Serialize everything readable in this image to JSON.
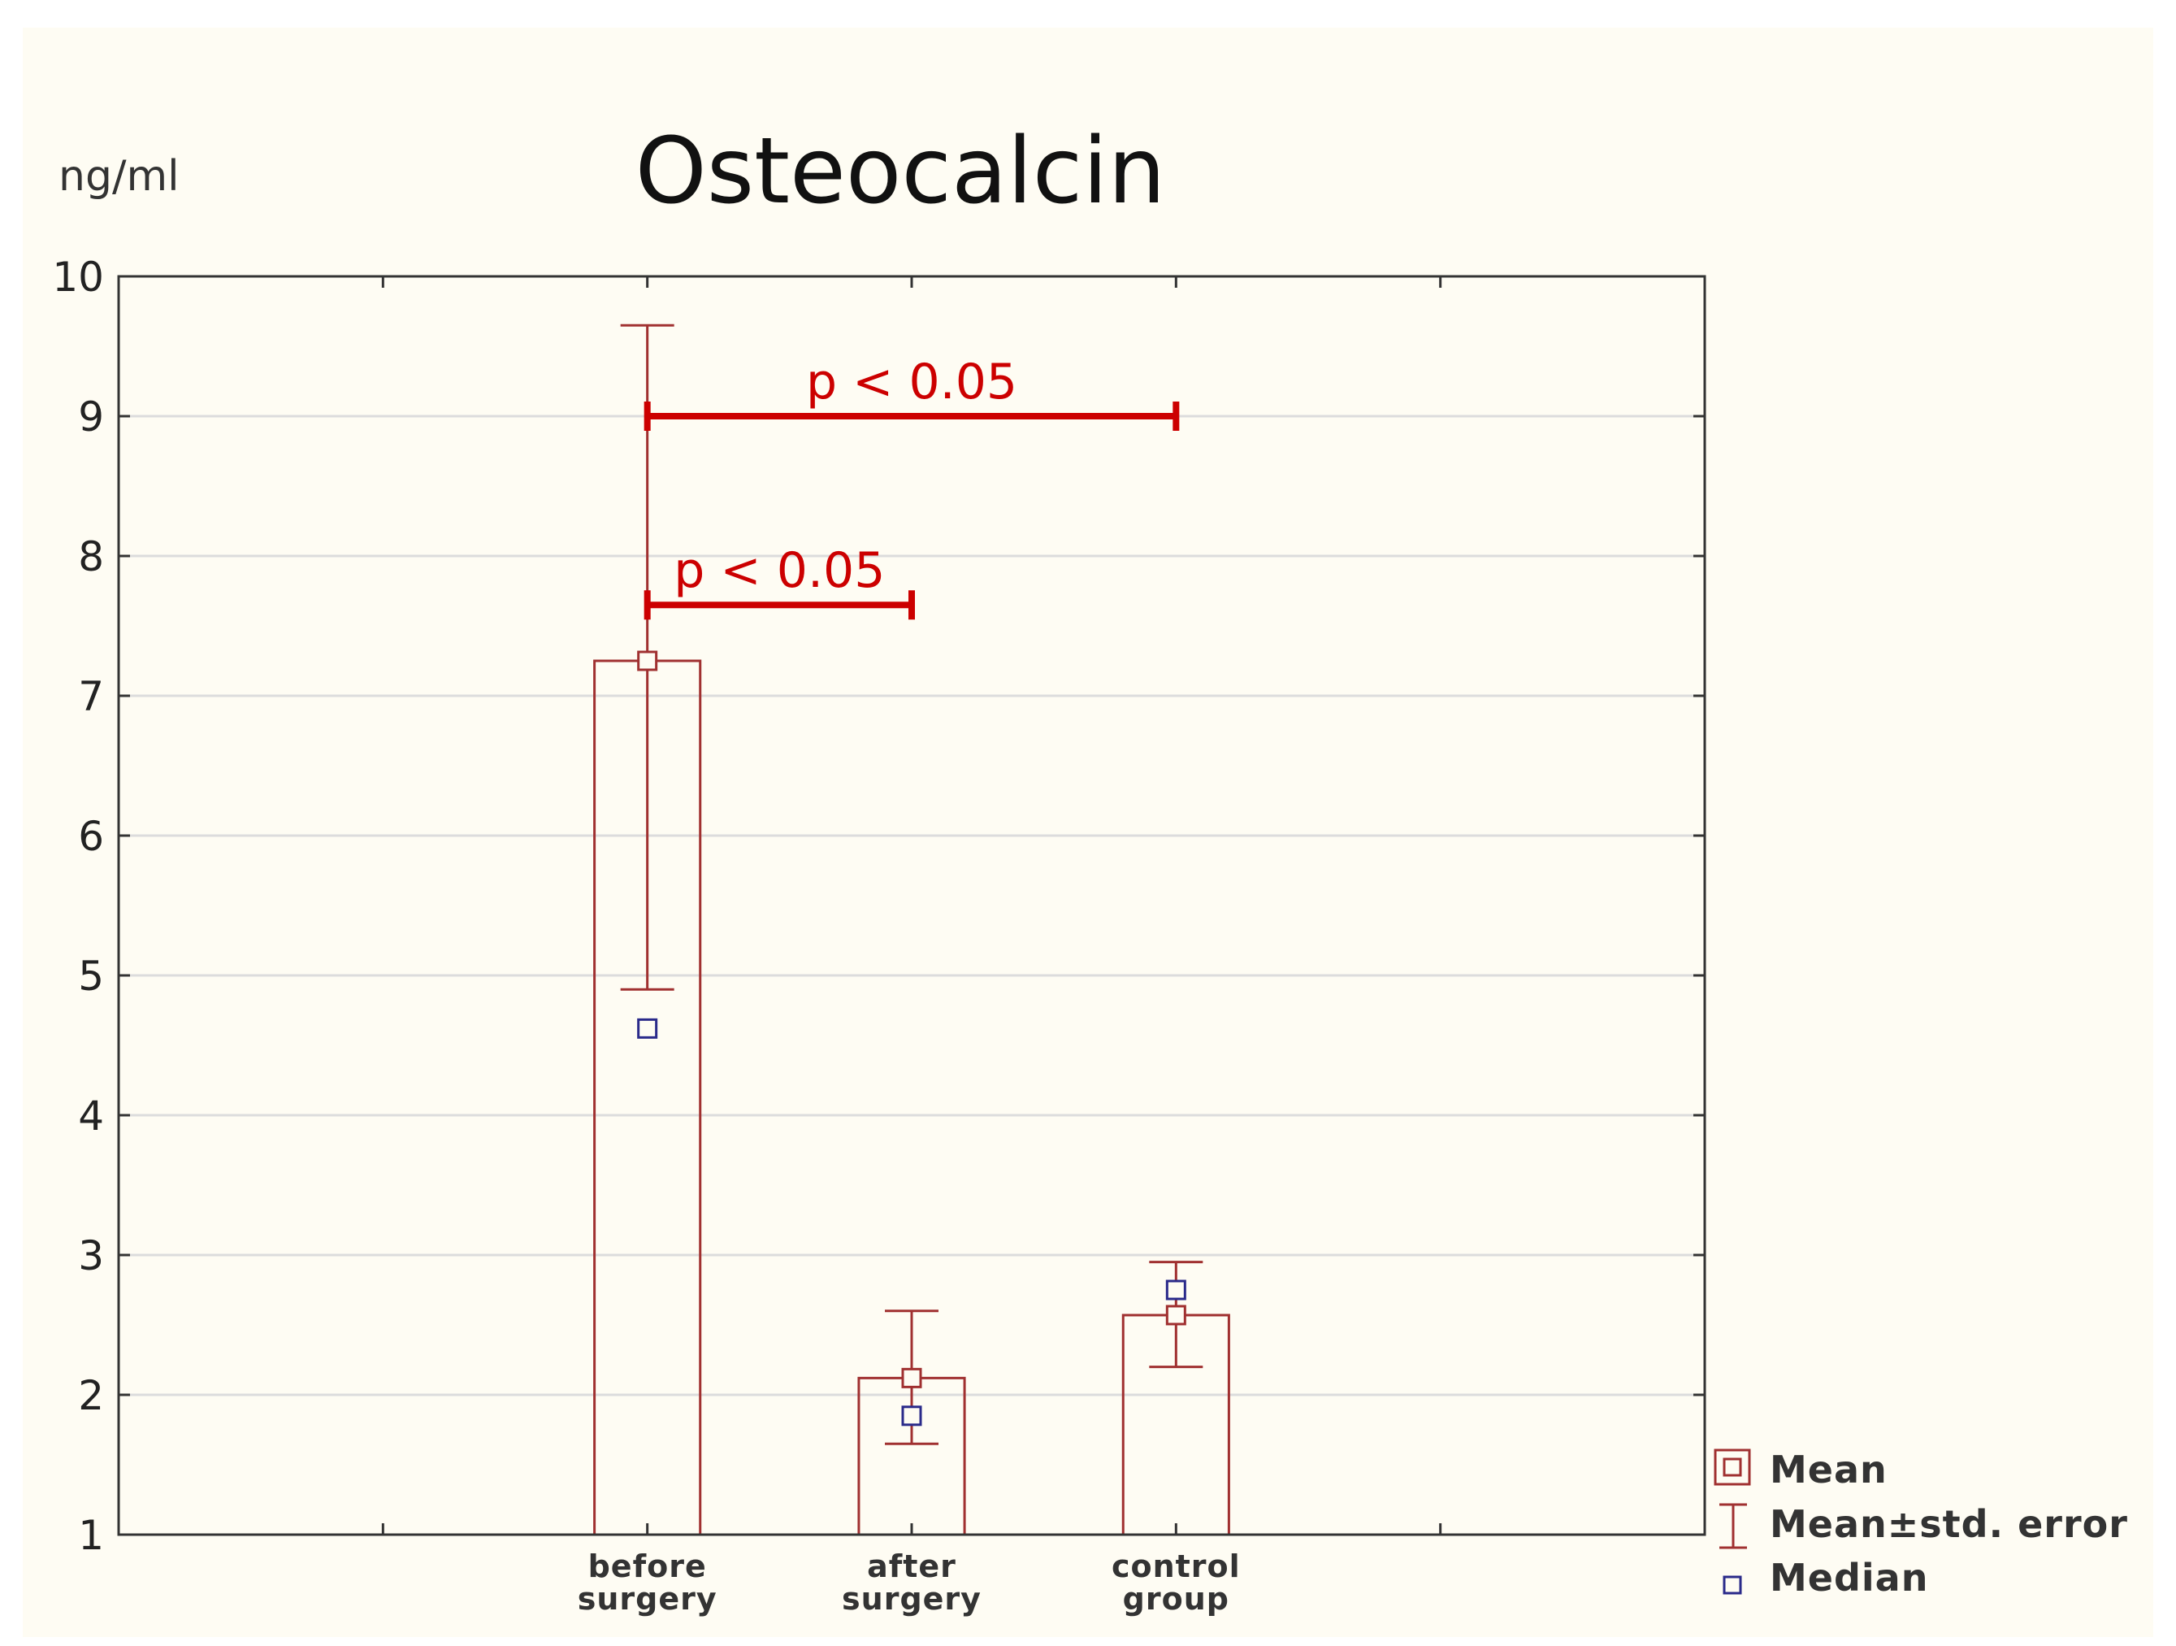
{
  "colors": {
    "background": "#fefcf3",
    "bar": "#a03030",
    "median": "#2a2a8a",
    "significance": "#cc0000",
    "grid": "#dcdcdc",
    "axis": "#333333"
  },
  "chart_data": {
    "type": "bar",
    "title": "Osteocalcin",
    "ylabel": "ng/ml",
    "ylim": [
      1,
      10
    ],
    "yticks": [
      "1",
      "2",
      "3",
      "4",
      "5",
      "6",
      "7",
      "8",
      "9",
      "10"
    ],
    "grid": true,
    "categories": [
      {
        "line1": "before",
        "line2": "surgery"
      },
      {
        "line1": "after",
        "line2": "surgery"
      },
      {
        "line1": "control",
        "line2": "group"
      }
    ],
    "x_slots": 6,
    "category_slots": [
      2,
      3,
      4
    ],
    "mean": [
      7.25,
      2.12,
      2.57
    ],
    "std_error_low": [
      4.9,
      1.65,
      2.2
    ],
    "std_error_high": [
      9.65,
      2.6,
      2.95
    ],
    "median": [
      4.62,
      1.85,
      2.75
    ],
    "significance": [
      {
        "from": 0,
        "to": 2,
        "y": 9.0,
        "label": "p < 0.05"
      },
      {
        "from": 0,
        "to": 1,
        "y": 7.65,
        "label": "p < 0.05"
      }
    ],
    "legend": {
      "position": "bottom-right",
      "mean": "Mean",
      "error": "Mean±std. error",
      "median": "Median"
    }
  }
}
